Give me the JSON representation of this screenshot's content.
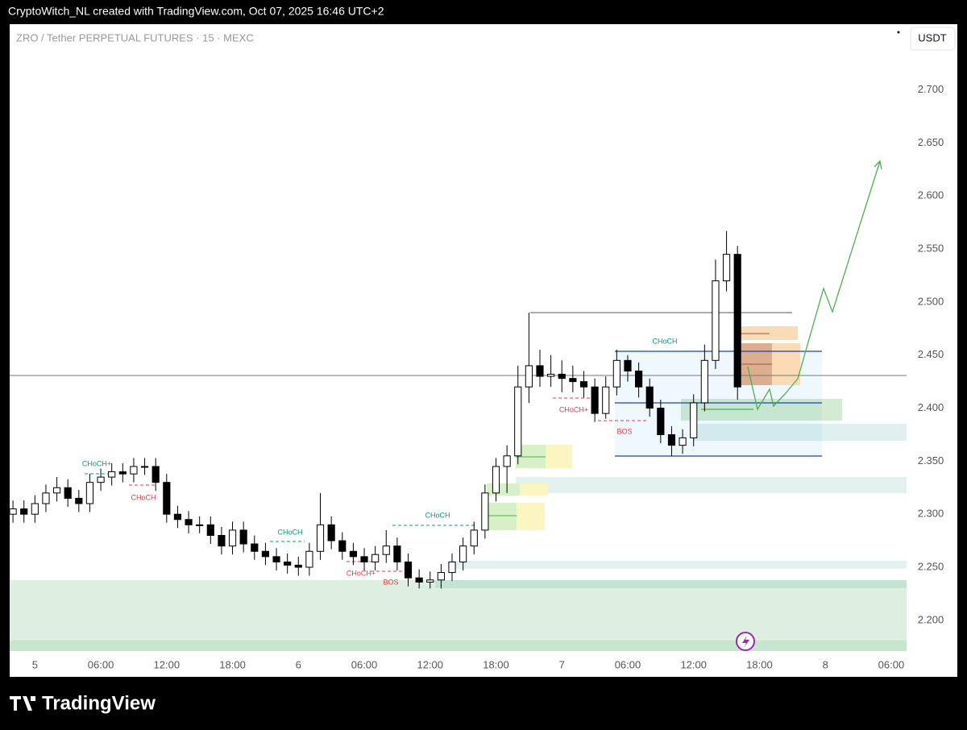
{
  "header": {
    "text": "CryptoWitch_NL created with TradingView.com, Oct 07, 2025 16:46 UTC+2"
  },
  "chart_data": {
    "type": "candlestick",
    "title": "ZRO / Tether PERPETUAL FUTURES · 15 · MEXC",
    "currency": "USDT",
    "x": [
      -2,
      -1,
      0,
      1,
      2,
      3,
      4,
      5,
      6,
      7,
      8,
      9,
      10,
      11,
      12,
      13,
      14,
      15,
      16,
      17,
      18,
      19,
      20,
      21,
      22,
      23,
      24,
      25,
      26,
      27,
      28,
      29,
      30,
      31,
      32,
      33,
      34,
      35,
      36,
      37,
      38,
      39,
      40,
      41,
      42,
      43,
      44,
      45,
      46,
      47,
      48,
      49,
      50,
      51,
      52,
      53,
      54,
      55,
      56,
      57,
      58,
      59,
      60,
      61,
      62,
      63,
      64
    ],
    "open": [
      2.3,
      2.305,
      2.3,
      2.31,
      2.32,
      2.325,
      2.315,
      2.31,
      2.33,
      2.335,
      2.34,
      2.338,
      2.345,
      2.345,
      2.33,
      2.3,
      2.295,
      2.29,
      2.29,
      2.28,
      2.27,
      2.285,
      2.272,
      2.265,
      2.26,
      2.255,
      2.252,
      2.25,
      2.265,
      2.29,
      2.275,
      2.265,
      2.26,
      2.255,
      2.262,
      2.27,
      2.255,
      2.24,
      2.236,
      2.238,
      2.245,
      2.255,
      2.27,
      2.285,
      2.32,
      2.345,
      2.355,
      2.42,
      2.44,
      2.43,
      2.432,
      2.428,
      2.425,
      2.42,
      2.395,
      2.42,
      2.445,
      2.435,
      2.42,
      2.4,
      2.375,
      2.365,
      2.372,
      2.405,
      2.445,
      2.52,
      2.545
    ],
    "high": [
      2.313,
      2.313,
      2.318,
      2.328,
      2.335,
      2.333,
      2.323,
      2.338,
      2.343,
      2.348,
      2.348,
      2.353,
      2.353,
      2.353,
      2.338,
      2.308,
      2.303,
      2.298,
      2.298,
      2.288,
      2.293,
      2.293,
      2.28,
      2.273,
      2.268,
      2.263,
      2.26,
      2.273,
      2.32,
      2.298,
      2.283,
      2.273,
      2.268,
      2.27,
      2.285,
      2.278,
      2.263,
      2.248,
      2.246,
      2.253,
      2.263,
      2.278,
      2.293,
      2.328,
      2.353,
      2.365,
      2.44,
      2.49,
      2.455,
      2.45,
      2.445,
      2.44,
      2.435,
      2.428,
      2.43,
      2.455,
      2.45,
      2.443,
      2.428,
      2.408,
      2.383,
      2.38,
      2.413,
      2.46,
      2.54,
      2.567,
      2.553
    ],
    "low": [
      2.292,
      2.292,
      2.292,
      2.302,
      2.312,
      2.307,
      2.302,
      2.302,
      2.322,
      2.327,
      2.33,
      2.33,
      2.337,
      2.322,
      2.292,
      2.287,
      2.282,
      2.282,
      2.272,
      2.262,
      2.262,
      2.264,
      2.257,
      2.252,
      2.247,
      2.244,
      2.242,
      2.242,
      2.257,
      2.267,
      2.257,
      2.252,
      2.247,
      2.247,
      2.254,
      2.247,
      2.232,
      2.23,
      2.23,
      2.23,
      2.237,
      2.247,
      2.262,
      2.277,
      2.312,
      2.32,
      2.347,
      2.405,
      2.42,
      2.42,
      2.415,
      2.415,
      2.41,
      2.387,
      2.39,
      2.412,
      2.425,
      2.41,
      2.392,
      2.367,
      2.355,
      2.357,
      2.364,
      2.397,
      2.437,
      2.51,
      2.408
    ],
    "close": [
      2.305,
      2.3,
      2.31,
      2.32,
      2.325,
      2.315,
      2.31,
      2.33,
      2.335,
      2.34,
      2.338,
      2.345,
      2.345,
      2.33,
      2.3,
      2.295,
      2.29,
      2.29,
      2.28,
      2.27,
      2.285,
      2.272,
      2.265,
      2.26,
      2.255,
      2.252,
      2.25,
      2.265,
      2.29,
      2.275,
      2.265,
      2.26,
      2.255,
      2.262,
      2.27,
      2.255,
      2.24,
      2.236,
      2.238,
      2.245,
      2.255,
      2.27,
      2.285,
      2.32,
      2.345,
      2.355,
      2.42,
      2.44,
      2.43,
      2.432,
      2.428,
      2.425,
      2.42,
      2.395,
      2.42,
      2.445,
      2.435,
      2.42,
      2.4,
      2.375,
      2.365,
      2.372,
      2.405,
      2.445,
      2.52,
      2.545,
      2.42
    ],
    "up_color": "#ffffff",
    "down_color": "#000000",
    "xlim": [
      -2.3,
      79.4
    ],
    "ylim": [
      2.171,
      2.762
    ],
    "xticks": [
      {
        "value": 0,
        "label": "5"
      },
      {
        "value": 6,
        "label": "06:00"
      },
      {
        "value": 12,
        "label": "12:00"
      },
      {
        "value": 18,
        "label": "18:00"
      },
      {
        "value": 24,
        "label": "6"
      },
      {
        "value": 30,
        "label": "06:00"
      },
      {
        "value": 36,
        "label": "12:00"
      },
      {
        "value": 42,
        "label": "18:00"
      },
      {
        "value": 48,
        "label": "7"
      },
      {
        "value": 54,
        "label": "06:00"
      },
      {
        "value": 60,
        "label": "12:00"
      },
      {
        "value": 66,
        "label": "18:00"
      },
      {
        "value": 72,
        "label": "8"
      },
      {
        "value": 78,
        "label": "06:00"
      }
    ],
    "yticks": [
      {
        "value": 2.2,
        "label": "2.200"
      },
      {
        "value": 2.25,
        "label": "2.250"
      },
      {
        "value": 2.3,
        "label": "2.300"
      },
      {
        "value": 2.35,
        "label": "2.350"
      },
      {
        "value": 2.4,
        "label": "2.400"
      },
      {
        "value": 2.45,
        "label": "2.450"
      },
      {
        "value": 2.5,
        "label": "2.500"
      },
      {
        "value": 2.55,
        "label": "2.550"
      },
      {
        "value": 2.6,
        "label": "2.600"
      },
      {
        "value": 2.65,
        "label": "2.650"
      },
      {
        "value": 2.7,
        "label": "2.700"
      }
    ],
    "annotations": [
      "CHoCH+",
      "CHoCH",
      "CHoCH",
      "CHoCH",
      "CHoCH+",
      "BOS",
      "CHoCH+",
      "BOS",
      "CHoCH"
    ]
  },
  "footer": {
    "logo": "TradingView"
  }
}
